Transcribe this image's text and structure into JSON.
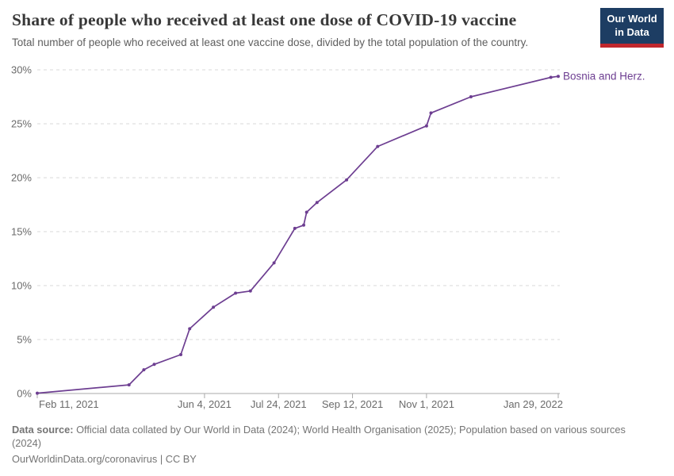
{
  "header": {
    "title": "Share of people who received at least one dose of COVID-19 vaccine",
    "subtitle": "Total number of people who received at least one vaccine dose, divided by the total population of the country."
  },
  "logo": {
    "line1": "Our World",
    "line2": "in Data",
    "bg_color": "#1d3d63",
    "accent_color": "#c0272d"
  },
  "chart_data": {
    "type": "line",
    "title": "Share of people who received at least one dose of COVID-19 vaccine",
    "grid": "horizontal dashed gridlines, solid baseline at 0%",
    "legend_position": "line-end label right of last point",
    "x_range": [
      "Feb 11, 2021",
      "Jan 29, 2022"
    ],
    "x_ticks": [
      "Feb 11, 2021",
      "Jun 4, 2021",
      "Jul 24, 2021",
      "Sep 12, 2021",
      "Nov 1, 2021",
      "Jan 29, 2022"
    ],
    "ylim": [
      0,
      30
    ],
    "y_ticks": [
      0,
      5,
      10,
      15,
      20,
      25,
      30
    ],
    "y_tick_suffix": "%",
    "series": [
      {
        "name": "Bosnia and Herz.",
        "color": "#6d3e91",
        "points": [
          {
            "date": "Feb 11, 2021",
            "value": 0.03
          },
          {
            "date": "Apr 14, 2021",
            "value": 0.8
          },
          {
            "date": "Apr 24, 2021",
            "value": 2.2
          },
          {
            "date": "May 1, 2021",
            "value": 2.7
          },
          {
            "date": "May 19, 2021",
            "value": 3.6
          },
          {
            "date": "May 25, 2021",
            "value": 6.0
          },
          {
            "date": "Jun 10, 2021",
            "value": 8.0
          },
          {
            "date": "Jun 25, 2021",
            "value": 9.3
          },
          {
            "date": "Jul 5, 2021",
            "value": 9.5
          },
          {
            "date": "Jul 21, 2021",
            "value": 12.1
          },
          {
            "date": "Aug 4, 2021",
            "value": 15.3
          },
          {
            "date": "Aug 10, 2021",
            "value": 15.6
          },
          {
            "date": "Aug 12, 2021",
            "value": 16.8
          },
          {
            "date": "Aug 19, 2021",
            "value": 17.7
          },
          {
            "date": "Sep 8, 2021",
            "value": 19.8
          },
          {
            "date": "Sep 29, 2021",
            "value": 22.9
          },
          {
            "date": "Nov 1, 2021",
            "value": 24.8
          },
          {
            "date": "Nov 4, 2021",
            "value": 26.0
          },
          {
            "date": "Dec 1, 2021",
            "value": 27.5
          },
          {
            "date": "Jan 24, 2022",
            "value": 29.3
          },
          {
            "date": "Jan 29, 2022",
            "value": 29.4
          }
        ]
      }
    ]
  },
  "colors": {
    "line": "#6d3e91",
    "series_label": "#6d3e91",
    "gridline": "#d9d9d9",
    "baseline": "#a8a8a8",
    "tick_mark": "#a8a8a8",
    "tick_label": "#6b6b6b"
  },
  "footer": {
    "source_label": "Data source:",
    "source_text": "Official data collated by Our World in Data (2024); World Health Organisation (2025); Population based on various sources (2024)",
    "license_text": "OurWorldinData.org/coronavirus | CC BY"
  }
}
